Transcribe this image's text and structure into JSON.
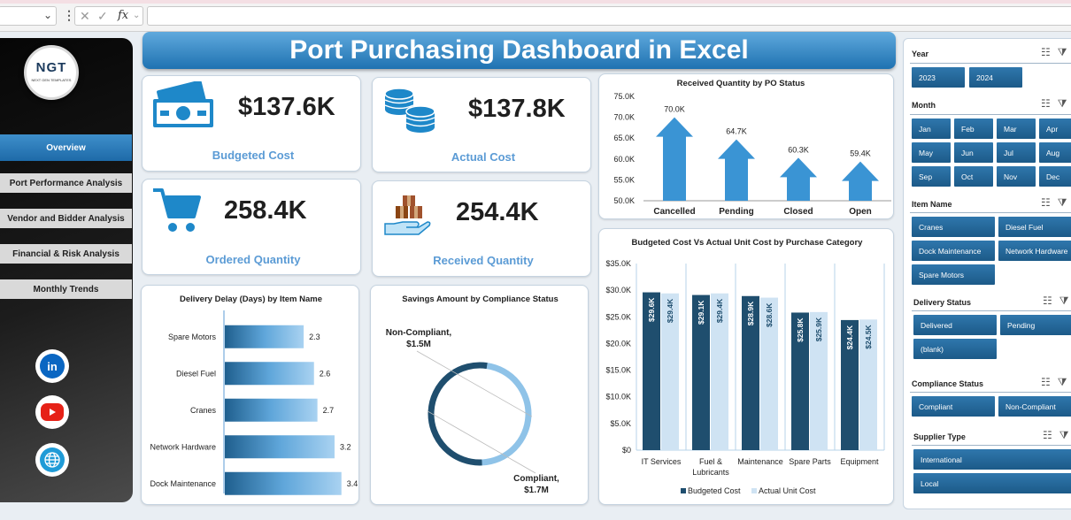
{
  "title": "Port Purchasing Dashboard in Excel",
  "formula_bar": {
    "fx": "fx"
  },
  "logo": {
    "text": "NGT",
    "sub": "NEXT GEN TEMPLATES"
  },
  "nav": [
    "Overview",
    "Port Performance Analysis",
    "Vendor and Bidder Analysis",
    "Financial & Risk Analysis",
    "Monthly Trends"
  ],
  "social": {
    "linkedin": "in"
  },
  "kpis": {
    "budgeted_cost": {
      "value": "$137.6K",
      "label": "Budgeted  Cost"
    },
    "actual_cost": {
      "value": "$137.8K",
      "label": "Actual  Cost"
    },
    "ordered_qty": {
      "value": "258.4K",
      "label": "Ordered Quantity"
    },
    "received_qty": {
      "value": "254.4K",
      "label": "Received Quantity"
    }
  },
  "chart_data": [
    {
      "type": "bar",
      "title": "Received Quantity by PO Status",
      "categories": [
        "Cancelled",
        "Pending",
        "Closed",
        "Open"
      ],
      "values": [
        70.0,
        64.7,
        60.3,
        59.4
      ],
      "data_labels": [
        "70.0K",
        "64.7K",
        "60.3K",
        "59.4K"
      ],
      "ylim": [
        50,
        75
      ],
      "yticks": [
        "75.0K",
        "70.0K",
        "65.0K",
        "60.0K",
        "55.0K",
        "50.0K"
      ]
    },
    {
      "type": "bar",
      "title": "Budgeted  Cost Vs Actual Unit Cost by Purchase Category",
      "categories": [
        "IT Services",
        "Fuel & Lubricants",
        "Maintenance",
        "Spare Parts",
        "Equipment"
      ],
      "series": [
        {
          "name": "Budgeted Cost",
          "values": [
            29.6,
            29.1,
            28.9,
            25.8,
            24.4
          ],
          "labels": [
            "$29.6K",
            "$29.1K",
            "$28.9K",
            "$25.8K",
            "$24.4K"
          ],
          "color": "#1f4e6e"
        },
        {
          "name": "Actual Unit Cost",
          "values": [
            29.4,
            29.4,
            28.6,
            25.9,
            24.5
          ],
          "labels": [
            "$29.4K",
            "$29.4K",
            "$28.6K",
            "$25.9K",
            "$24.5K"
          ],
          "color": "#cfe3f3"
        }
      ],
      "ylim": [
        0,
        35
      ],
      "yticks": [
        "$35.0K",
        "$30.0K",
        "$25.0K",
        "$20.0K",
        "$15.0K",
        "$10.0K",
        "$5.0K",
        "$0"
      ]
    },
    {
      "type": "bar",
      "orientation": "horizontal",
      "title": "Delivery Delay (Days) by Item Name",
      "categories": [
        "Spare Motors",
        "Diesel Fuel",
        "Cranes",
        "Network Hardware",
        "Dock Maintenance"
      ],
      "values": [
        2.3,
        2.6,
        2.7,
        3.2,
        3.4
      ],
      "data_labels": [
        "2.3",
        "2.6",
        "2.7",
        "3.2",
        "3.4"
      ],
      "xlim": [
        0,
        4
      ]
    },
    {
      "type": "pie",
      "title": "Savings Amount by Compliance Status",
      "categories": [
        "Non-Compliant",
        "Compliant"
      ],
      "values": [
        1.5,
        1.7
      ],
      "labels": [
        "Non-Compliant,\n$1.5M",
        "Compliant,\n$1.7M"
      ],
      "colors": [
        "#8fc3e8",
        "#1f4e6e"
      ]
    }
  ],
  "slicers": {
    "year": {
      "label": "Year",
      "items": [
        "2023",
        "2024"
      ]
    },
    "month": {
      "label": "Month",
      "items": [
        "Jan",
        "Feb",
        "Mar",
        "Apr",
        "May",
        "Jun",
        "Jul",
        "Aug",
        "Sep",
        "Oct",
        "Nov",
        "Dec"
      ]
    },
    "item": {
      "label": "Item Name",
      "items": [
        "Cranes",
        "Diesel Fuel",
        "Dock Maintenance",
        "Network Hardware",
        "Spare Motors"
      ]
    },
    "delivery": {
      "label": "Delivery Status",
      "items": [
        "Delivered",
        "Pending",
        "(blank)"
      ]
    },
    "compliance": {
      "label": "Compliance Status",
      "items": [
        "Compliant",
        "Non-Compliant"
      ]
    },
    "supplier": {
      "label": "Supplier Type",
      "items": [
        "International",
        "Local"
      ]
    }
  }
}
